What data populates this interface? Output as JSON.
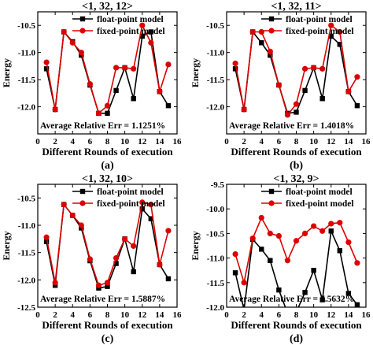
{
  "chart_data": [
    {
      "type": "line",
      "title": "<1, 32, 12>",
      "xlabel": "Different Rounds of execution",
      "ylabel": "Energy",
      "xlim": [
        0,
        16
      ],
      "ylim": [
        -12.5,
        -10.25
      ],
      "x_ticks": [
        0,
        2,
        4,
        6,
        8,
        10,
        12,
        14,
        16
      ],
      "y_ticks": [
        -10.5,
        -11.0,
        -11.5,
        -12.0
      ],
      "y_tick_labels": [
        "-10.5",
        "-11.0",
        "-11.5",
        "-12.0"
      ],
      "legend_position": "top-right",
      "annotation": "Average Relative  Err = 1.1251%",
      "panel_label": "(a)",
      "x": [
        1,
        2,
        3,
        4,
        5,
        6,
        7,
        8,
        9,
        10,
        11,
        12,
        13,
        14,
        15
      ],
      "series": [
        {
          "name": "float-point model",
          "color": "#000000",
          "marker": "square",
          "values": [
            -11.3,
            -12.05,
            -10.62,
            -10.8,
            -11.05,
            -11.6,
            -12.12,
            -12.12,
            -11.7,
            -11.28,
            -11.85,
            -10.7,
            -10.62,
            -11.72,
            -11.98
          ]
        },
        {
          "name": "fixed-point model",
          "color": "#dd0000",
          "marker": "circle",
          "values": [
            -11.18,
            -12.05,
            -10.62,
            -10.82,
            -11.0,
            -11.58,
            -12.12,
            -11.98,
            -11.28,
            -11.28,
            -11.3,
            -10.5,
            -10.82,
            -11.72,
            -11.22
          ]
        }
      ]
    },
    {
      "type": "line",
      "title": "<1, 32, 11>",
      "xlabel": "Different Rounds of execution",
      "ylabel": "Energy",
      "xlim": [
        0,
        16
      ],
      "ylim": [
        -12.5,
        -10.25
      ],
      "x_ticks": [
        0,
        2,
        4,
        6,
        8,
        10,
        12,
        14,
        16
      ],
      "y_ticks": [
        -10.5,
        -11.0,
        -11.5,
        -12.0
      ],
      "y_tick_labels": [
        "-10.5",
        "-11.0",
        "-11.5",
        "-12.0"
      ],
      "legend_position": "top-right",
      "annotation": "Average Relative  Err = 1.4018%",
      "panel_label": "(b)",
      "x": [
        1,
        2,
        3,
        4,
        5,
        6,
        7,
        8,
        9,
        10,
        11,
        12,
        13,
        14,
        15
      ],
      "series": [
        {
          "name": "float-point model",
          "color": "#000000",
          "marker": "square",
          "values": [
            -11.3,
            -12.05,
            -10.62,
            -10.82,
            -11.05,
            -11.6,
            -12.12,
            -12.1,
            -11.7,
            -11.28,
            -11.85,
            -10.7,
            -10.85,
            -11.72,
            -11.98
          ]
        },
        {
          "name": "fixed-point model",
          "color": "#dd0000",
          "marker": "circle",
          "values": [
            -11.2,
            -12.05,
            -10.62,
            -10.62,
            -10.98,
            -11.6,
            -12.15,
            -11.95,
            -11.3,
            -11.28,
            -11.3,
            -10.5,
            -10.62,
            -11.72,
            -11.45
          ]
        }
      ]
    },
    {
      "type": "line",
      "title": "<1, 32, 10>",
      "xlabel": "Different Rounds of execution",
      "ylabel": "Energy",
      "xlim": [
        0,
        16
      ],
      "ylim": [
        -12.5,
        -10.25
      ],
      "x_ticks": [
        0,
        2,
        4,
        6,
        8,
        10,
        12,
        14,
        16
      ],
      "y_ticks": [
        -10.5,
        -11.0,
        -11.5,
        -12.0,
        -12.5
      ],
      "y_tick_labels": [
        "-10.5",
        "-11.0",
        "-11.5",
        "-12.0",
        "-12.5"
      ],
      "legend_position": "top-right",
      "annotation": "Average Relative  Err = 1.5887%",
      "panel_label": "(c)",
      "x": [
        1,
        2,
        3,
        4,
        5,
        6,
        7,
        8,
        9,
        10,
        11,
        12,
        13,
        14,
        15
      ],
      "series": [
        {
          "name": "float-point model",
          "color": "#000000",
          "marker": "square",
          "values": [
            -11.3,
            -12.1,
            -10.62,
            -10.82,
            -11.05,
            -11.65,
            -12.15,
            -12.12,
            -11.7,
            -11.25,
            -11.85,
            -10.7,
            -10.88,
            -11.72,
            -11.98
          ]
        },
        {
          "name": "fixed-point model",
          "color": "#dd0000",
          "marker": "circle",
          "values": [
            -11.22,
            -12.05,
            -10.62,
            -10.82,
            -11.0,
            -11.62,
            -12.1,
            -12.05,
            -11.6,
            -11.25,
            -11.38,
            -10.58,
            -10.62,
            -11.72,
            -11.1
          ]
        }
      ]
    },
    {
      "type": "line",
      "title": "<1, 32, 9>",
      "xlabel": "Different Rounds of execution",
      "ylabel": "Energy",
      "xlim": [
        0,
        16
      ],
      "ylim": [
        -12.0,
        -9.5
      ],
      "x_ticks": [
        0,
        2,
        4,
        6,
        8,
        10,
        12,
        14,
        16
      ],
      "y_ticks": [
        -9.5,
        -10.0,
        -10.5,
        -11.0,
        -11.5,
        -12.0
      ],
      "y_tick_labels": [
        "-9.5",
        "-10.0",
        "-10.5",
        "-11.0",
        "-11.5",
        "-12.0"
      ],
      "legend_position": "top-right",
      "annotation": "Average Relative  Err = 7.5632%",
      "panel_label": "(d)",
      "x": [
        1,
        2,
        3,
        4,
        5,
        6,
        7,
        8,
        9,
        10,
        11,
        12,
        13,
        14,
        15
      ],
      "series": [
        {
          "name": "float-point model",
          "color": "#000000",
          "marker": "square",
          "values": [
            -11.3,
            -12.05,
            -10.62,
            -10.82,
            -11.05,
            -11.65,
            -12.12,
            -12.1,
            -11.7,
            -11.25,
            -11.85,
            -10.45,
            -10.85,
            -11.72,
            -11.95
          ]
        },
        {
          "name": "fixed-point model",
          "color": "#dd0000",
          "marker": "circle",
          "values": [
            -10.92,
            -11.5,
            -10.6,
            -10.18,
            -10.5,
            -10.55,
            -11.05,
            -10.65,
            -10.5,
            -10.35,
            -10.45,
            -10.3,
            -10.28,
            -10.68,
            -11.1
          ]
        }
      ]
    }
  ]
}
